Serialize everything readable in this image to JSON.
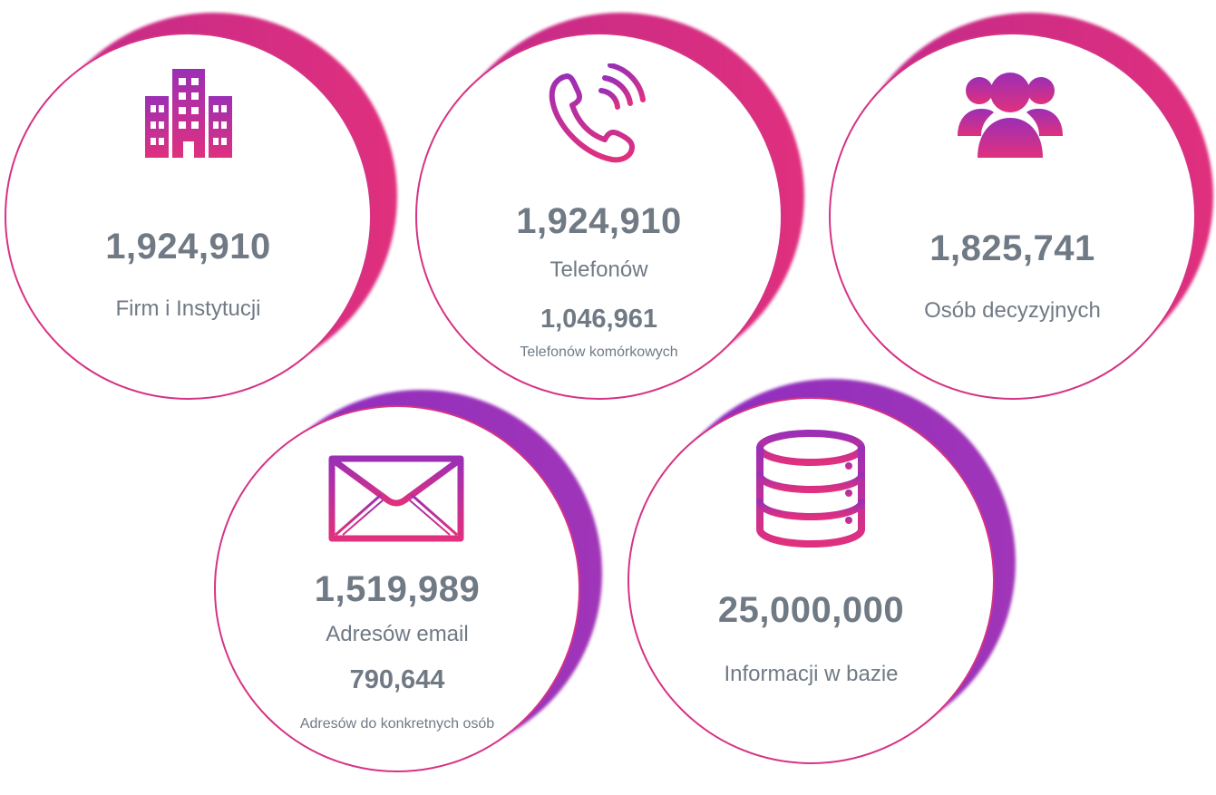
{
  "colors": {
    "magenta": "#e0307e",
    "purple": "#9b2fb5",
    "text_gray": "#707a85",
    "ring": "#d63384"
  },
  "stats": [
    {
      "icon": "building-icon",
      "value": "1,924,910",
      "label": "Firm i Instytucji"
    },
    {
      "icon": "phone-icon",
      "value": "1,924,910",
      "label": "Telefonów",
      "sub_value": "1,046,961",
      "sub_label": "Telefonów komórkowych"
    },
    {
      "icon": "users-icon",
      "value": "1,825,741",
      "label": "Osób decyzyjnych"
    },
    {
      "icon": "envelope-icon",
      "value": "1,519,989",
      "label": "Adresów email",
      "sub_value": "790,644",
      "sub_label": "Adresów do konkretnych osób"
    },
    {
      "icon": "database-icon",
      "value": "25,000,000",
      "label": "Informacji w bazie"
    }
  ]
}
